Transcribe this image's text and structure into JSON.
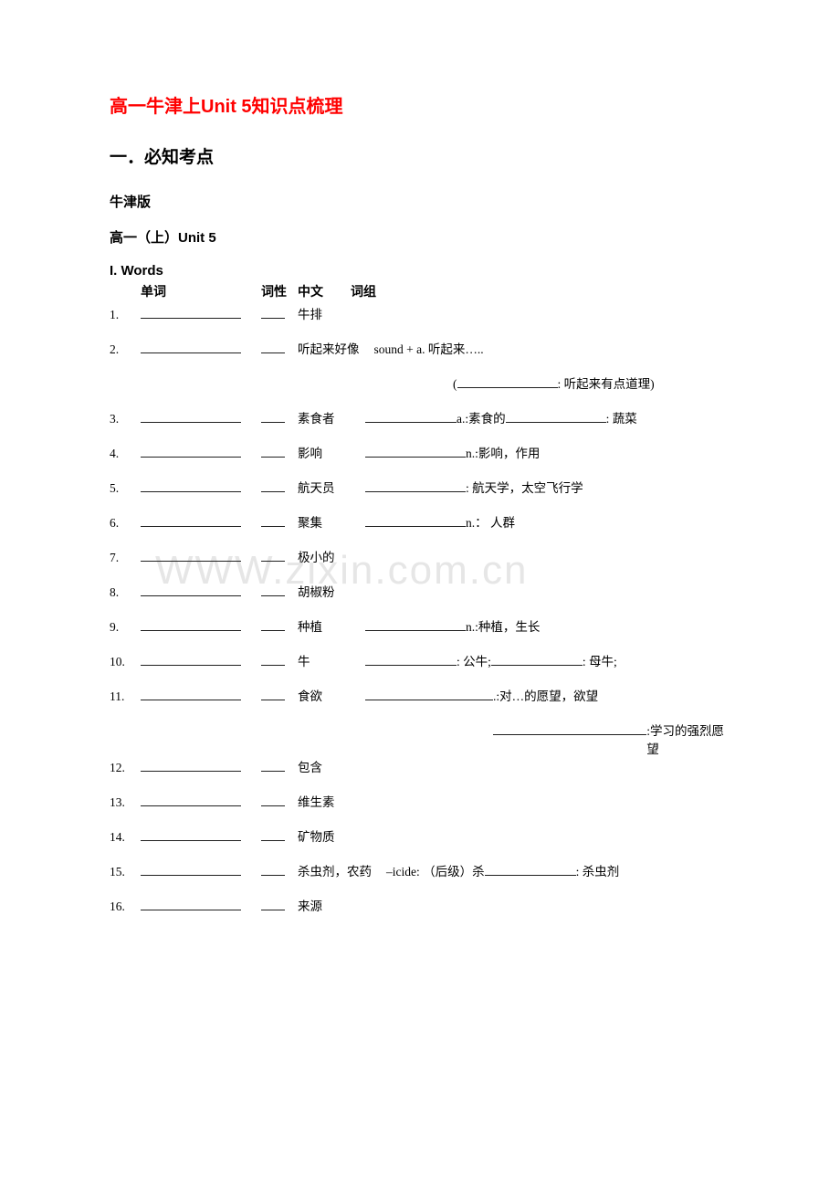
{
  "title": "高一牛津上Unit 5知识点梳理",
  "section_header": "一．必知考点",
  "edition": "牛津版",
  "unit_line": "高一（上）Unit 5",
  "words_label": "I. Words",
  "columns": {
    "word": "单词",
    "pos": "词性",
    "cn": "中文",
    "phrase": "词组"
  },
  "watermark": "WWW.zixin.com.cn",
  "rows": [
    {
      "n": "1.",
      "cn": "牛排",
      "extra": ""
    },
    {
      "n": "2.",
      "cn": "听起来好像",
      "extra": "sound + a.  听起来…..",
      "extra2_prefix": "(",
      "extra2_blank_w": 110,
      "extra2_suffix": ": 听起来有点道理)"
    },
    {
      "n": "3.",
      "cn": "素食者",
      "segments": [
        {
          "blank": 100
        },
        {
          "text": " a.:素食的  "
        },
        {
          "blank": 110
        },
        {
          "text": ": 蔬菜"
        }
      ]
    },
    {
      "n": "4.",
      "cn": "影响",
      "segments": [
        {
          "blank": 110
        },
        {
          "text": " n.:影响，作用"
        }
      ]
    },
    {
      "n": "5.",
      "cn": "航天员",
      "segments": [
        {
          "blank": 110
        },
        {
          "text": ": 航天学，太空飞行学"
        }
      ]
    },
    {
      "n": "6.",
      "cn": "聚集",
      "segments": [
        {
          "blank": 110
        },
        {
          "text": " n.： 人群"
        }
      ]
    },
    {
      "n": "7.",
      "cn": "极小的",
      "extra": ""
    },
    {
      "n": "8.",
      "cn": "胡椒粉",
      "extra": ""
    },
    {
      "n": "9.",
      "cn": "种植",
      "segments": [
        {
          "blank": 110
        },
        {
          "text": " n.:种植，生长"
        }
      ]
    },
    {
      "n": "10.",
      "cn": "牛",
      "segments": [
        {
          "blank": 100
        },
        {
          "text": ": 公牛; "
        },
        {
          "blank": 100
        },
        {
          "text": ": 母牛;"
        }
      ]
    },
    {
      "n": "11.",
      "cn": "食欲",
      "segments": [
        {
          "blank": 140
        },
        {
          "text": ".:对…的愿望，欲望"
        }
      ],
      "extra2_blank_w": 180,
      "extra2_suffix": ":学习的强烈愿望",
      "extra2_indent": 420
    },
    {
      "n": "12.",
      "cn": "包含",
      "extra": ""
    },
    {
      "n": "13.",
      "cn": "维生素",
      "extra": ""
    },
    {
      "n": "14.",
      "cn": "矿物质",
      "extra": ""
    },
    {
      "n": "15.",
      "cn": "杀虫剂，农药",
      "segments": [
        {
          "text": "  –icide: （后级）杀 "
        },
        {
          "blank": 100
        },
        {
          "text": ": 杀虫剂"
        }
      ]
    },
    {
      "n": "16.",
      "cn": "来源",
      "extra": ""
    }
  ]
}
